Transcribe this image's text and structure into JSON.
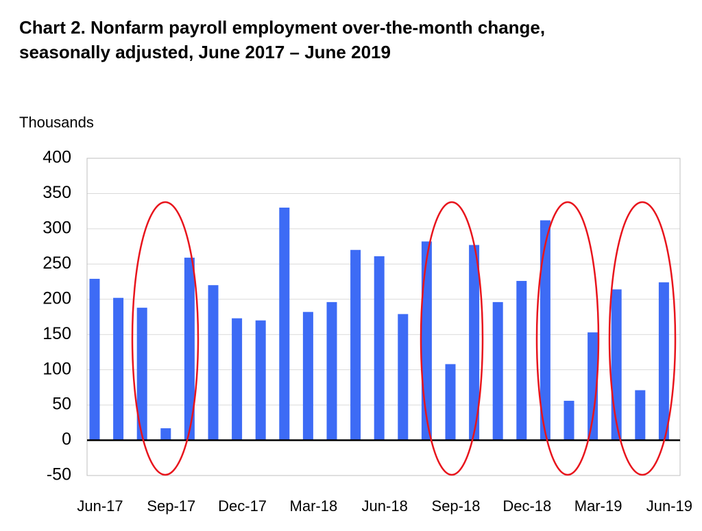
{
  "chart_data": {
    "type": "bar",
    "title": "Chart 2. Nonfarm payroll employment over-the-month change, seasonally adjusted, June 2017 – June 2019",
    "y_label": "Thousands",
    "categories": [
      "Jun-17",
      null,
      null,
      "Sep-17",
      null,
      null,
      "Dec-17",
      null,
      null,
      "Mar-18",
      null,
      null,
      "Jun-18",
      null,
      null,
      "Sep-18",
      null,
      null,
      "Dec-18",
      null,
      null,
      "Mar-19",
      null,
      null,
      "Jun-19"
    ],
    "values": [
      229,
      202,
      188,
      17,
      259,
      220,
      173,
      170,
      330,
      182,
      196,
      270,
      261,
      179,
      282,
      108,
      277,
      196,
      226,
      312,
      56,
      153,
      214,
      71,
      224
    ],
    "color": "#3d6bf5",
    "ylim": [
      -50,
      400
    ],
    "yticks": [
      -50,
      0,
      50,
      100,
      150,
      200,
      250,
      300,
      350,
      400
    ],
    "grid": true
  }
}
